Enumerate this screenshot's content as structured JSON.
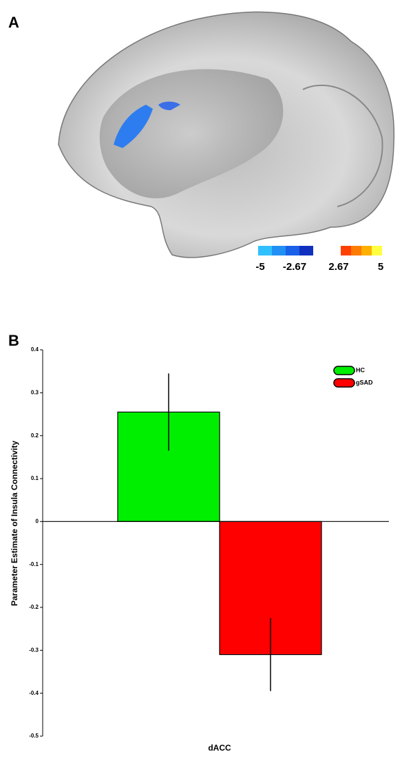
{
  "panel_a": {
    "label": "A",
    "colorbar": {
      "labels": [
        -5,
        -2.67,
        2.67,
        5
      ]
    }
  },
  "chart_data": {
    "type": "bar",
    "panel_label": "B",
    "y_label": "Parameter Estimate of Insula Connectivity",
    "categories": [
      "dACC"
    ],
    "series": [
      {
        "name": "HC",
        "color": "#00ee00",
        "values": [
          0.255
        ],
        "errors": [
          0.09
        ]
      },
      {
        "name": "gSAD",
        "color": "#ff0000",
        "values": [
          -0.31
        ],
        "errors": [
          0.085
        ]
      }
    ],
    "ylim": [
      -0.5,
      0.4
    ],
    "yticks": [
      0.4,
      0.3,
      0.2,
      0.1,
      0,
      -0.1,
      -0.2,
      -0.3,
      -0.4,
      -0.5
    ],
    "legend": "top-right"
  }
}
